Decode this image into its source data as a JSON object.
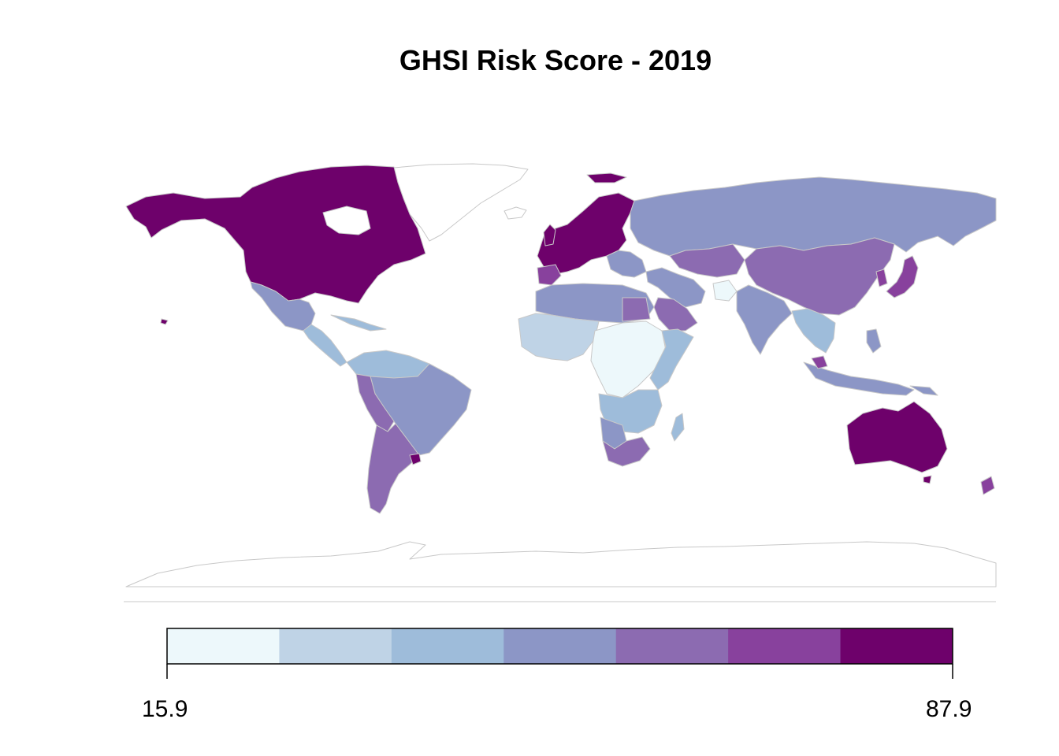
{
  "map": {
    "title": "GHSI Risk Score - 2019",
    "legend": {
      "min_label": "15.9",
      "max_label": "87.9",
      "bins": 7,
      "palette": [
        "#edf8fb",
        "#bfd3e6",
        "#9ebcda",
        "#8c96c6",
        "#8c6bb1",
        "#88419d",
        "#6e016b"
      ]
    },
    "colors": {
      "ocean": "#ffffff",
      "border": "#c8c8c8",
      "no_data": "#ffffff"
    }
  }
}
